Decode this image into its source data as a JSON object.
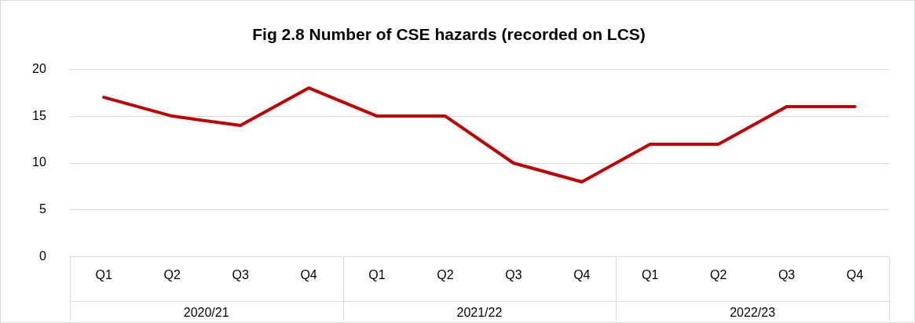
{
  "chart_data": {
    "type": "line",
    "title": "Fig 2.8 Number of CSE hazards (recorded on LCS)",
    "categories": [
      "Q1",
      "Q2",
      "Q3",
      "Q4",
      "Q1",
      "Q2",
      "Q3",
      "Q4",
      "Q1",
      "Q2",
      "Q3",
      "Q4"
    ],
    "series": [
      {
        "color": "#c00000",
        "values": [
          17,
          15,
          14,
          18,
          15,
          15,
          10,
          8,
          12,
          12,
          16,
          16
        ]
      }
    ],
    "annotations": [
      "2020/21",
      "2021/22",
      "2022/23"
    ],
    "ylim": [
      0,
      20
    ],
    "yticks": [
      0,
      5,
      10,
      15,
      20
    ],
    "grid": "y",
    "legend": false,
    "marker": "none",
    "line_style": "solid"
  }
}
